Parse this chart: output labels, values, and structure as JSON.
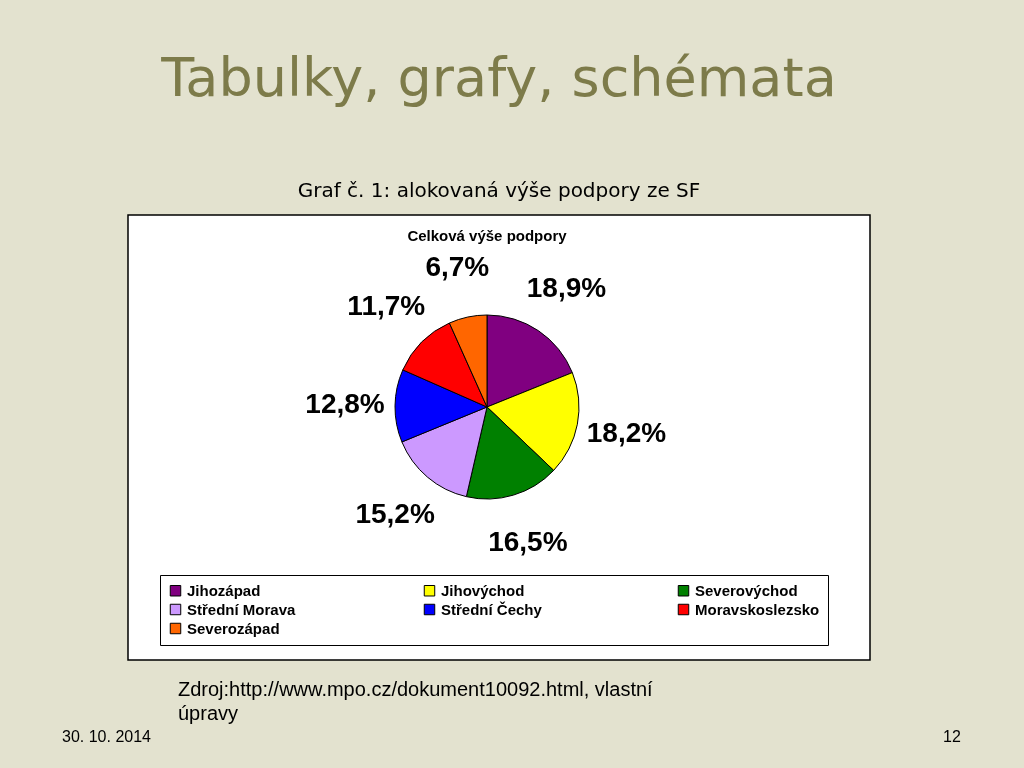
{
  "chart_data": {
    "type": "pie",
    "title": "Tabulky, grafy, schémata",
    "subtitle": "Graf č. 1: alokovaná výše podpory ze SF",
    "categories": [
      "Jihozápad",
      "Jihovýchod",
      "Severovýchod",
      "Střední Morava",
      "Střední Čechy",
      "Moravskoslezsko",
      "Severozápad"
    ],
    "values": [
      18.9,
      18.2,
      16.5,
      15.2,
      12.8,
      11.7,
      6.7
    ],
    "colors": [
      "#800080",
      "#ffff00",
      "#008000",
      "#cc99ff",
      "#0000ff",
      "#ff0000",
      "#ff6600"
    ],
    "value_labels": [
      "18,9%",
      "18,2%",
      "16,5%",
      "15,2%",
      "12,8%",
      "11,7%",
      "6,7%"
    ],
    "legend": "bottom",
    "annotations": [
      "Celková výše podpory",
      "Zdroj:http://www.mpo.cz/dokument10092.html, vlastní úpravy",
      "30. 10. 2014",
      "12"
    ]
  }
}
